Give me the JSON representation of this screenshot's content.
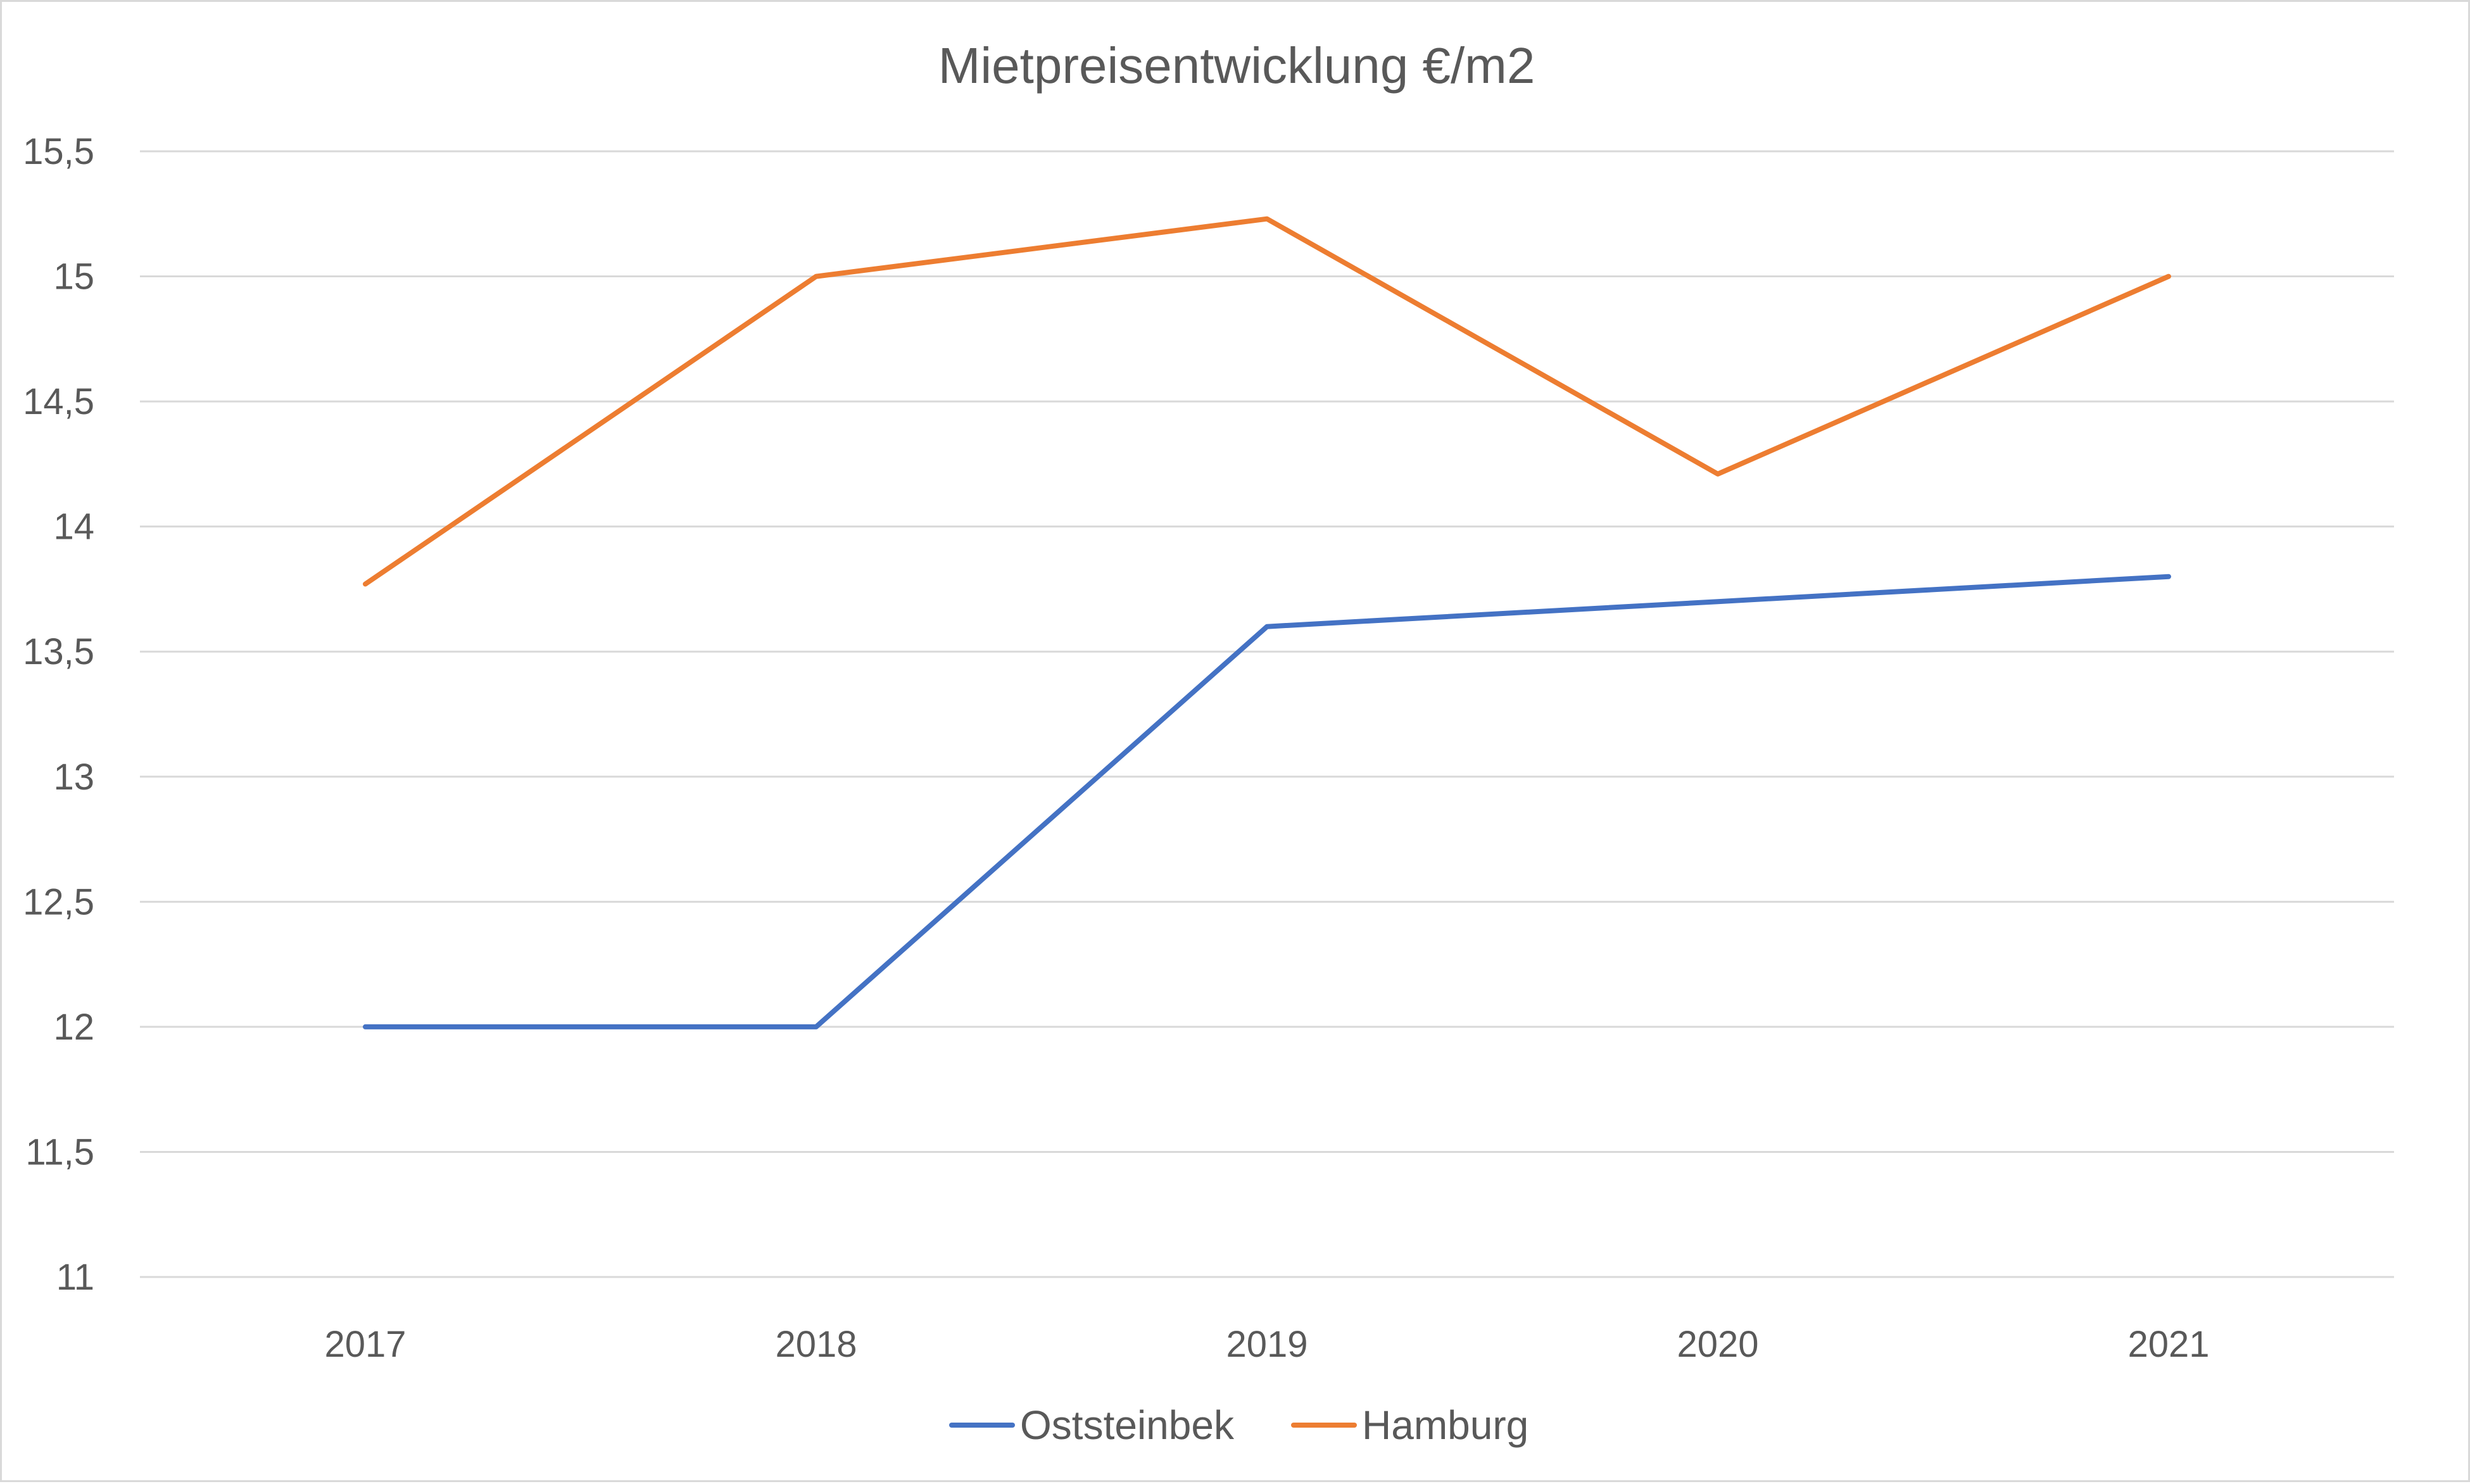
{
  "colors": {
    "background": "#ffffff",
    "border": "#d9d9d9",
    "gridline": "#d9d9d9",
    "text": "#595959",
    "oststeinbek": "#4472c4",
    "hamburg": "#ed7d31"
  },
  "chart_data": {
    "type": "line",
    "title": "Mietpreisentwicklung  €/m2",
    "xlabel": "",
    "ylabel": "",
    "categories": [
      "2017",
      "2018",
      "2019",
      "2020",
      "2021"
    ],
    "ylim": [
      11,
      15.5
    ],
    "y_ticks": [
      11,
      11.5,
      12,
      12.5,
      13,
      13.5,
      14,
      14.5,
      15,
      15.5
    ],
    "y_tick_labels": [
      "11",
      "11,5",
      "12",
      "12,5",
      "13",
      "13,5",
      "14",
      "14,5",
      "15",
      "15,5"
    ],
    "grid": true,
    "legend_position": "bottom",
    "series": [
      {
        "name": "Oststeinbek",
        "color": "#4472c4",
        "values": [
          12.0,
          12.0,
          13.6,
          13.7,
          13.8
        ]
      },
      {
        "name": "Hamburg",
        "color": "#ed7d31",
        "values": [
          13.77,
          15.0,
          15.23,
          14.21,
          15.0
        ]
      }
    ]
  }
}
